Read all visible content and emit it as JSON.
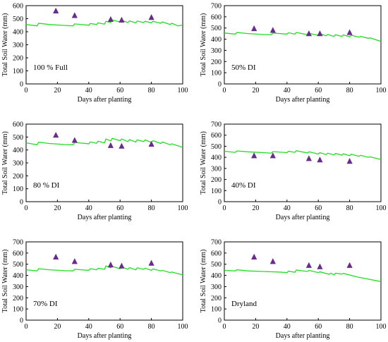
{
  "chart_data": [
    {
      "type": "scatter",
      "panel_label": "100 % Full",
      "xlabel": "Days after planting",
      "ylabel": "Total Soil Water (mm)",
      "xlim": [
        0,
        100
      ],
      "ylim": [
        0,
        600
      ],
      "xticks": [
        0,
        20,
        40,
        60,
        80,
        100
      ],
      "yticks": [
        0,
        100,
        200,
        300,
        400,
        500,
        600
      ],
      "series": [
        {
          "kind": "line",
          "color": "#22dd22",
          "x": [
            0,
            7,
            8,
            15,
            25,
            30,
            31,
            40,
            41,
            45,
            46,
            50,
            51,
            54,
            55,
            60,
            61,
            65,
            66,
            70,
            71,
            75,
            76,
            80,
            81,
            86,
            87,
            92,
            93,
            97,
            98,
            100
          ],
          "y": [
            455,
            445,
            465,
            455,
            448,
            445,
            460,
            450,
            463,
            455,
            468,
            458,
            480,
            470,
            490,
            475,
            488,
            470,
            483,
            468,
            482,
            470,
            480,
            468,
            480,
            465,
            475,
            455,
            465,
            445,
            448,
            450
          ]
        },
        {
          "kind": "points",
          "color": "#6a2c8c",
          "marker": "triangle",
          "x": [
            19,
            31,
            54,
            61,
            80
          ],
          "y": [
            560,
            525,
            495,
            490,
            510
          ]
        }
      ]
    },
    {
      "type": "scatter",
      "panel_label": "50% DI",
      "xlabel": "Days after planting",
      "ylabel": "Total Soil Water (mm)",
      "xlim": [
        0,
        100
      ],
      "ylim": [
        0,
        700
      ],
      "xticks": [
        0,
        20,
        40,
        60,
        80,
        100
      ],
      "yticks": [
        0,
        100,
        200,
        300,
        400,
        500,
        600,
        700
      ],
      "series": [
        {
          "kind": "line",
          "color": "#22dd22",
          "x": [
            0,
            7,
            8,
            15,
            25,
            30,
            31,
            40,
            41,
            45,
            46,
            53,
            54,
            60,
            61,
            65,
            66,
            70,
            71,
            75,
            76,
            80,
            81,
            86,
            87,
            92,
            93,
            100
          ],
          "y": [
            455,
            445,
            460,
            450,
            442,
            440,
            455,
            445,
            458,
            445,
            460,
            440,
            452,
            435,
            450,
            430,
            442,
            425,
            440,
            425,
            438,
            422,
            435,
            418,
            425,
            408,
            412,
            380
          ]
        },
        {
          "kind": "points",
          "color": "#6a2c8c",
          "marker": "triangle",
          "x": [
            19,
            31,
            54,
            61,
            80
          ],
          "y": [
            495,
            480,
            450,
            450,
            460
          ]
        }
      ]
    },
    {
      "type": "scatter",
      "panel_label": "80 % DI",
      "xlabel": "Days after planting",
      "ylabel": "Total Soil Water (mm)",
      "xlim": [
        0,
        100
      ],
      "ylim": [
        0,
        600
      ],
      "xticks": [
        0,
        20,
        40,
        60,
        80,
        100
      ],
      "yticks": [
        0,
        100,
        200,
        300,
        400,
        500,
        600
      ],
      "series": [
        {
          "kind": "line",
          "color": "#22dd22",
          "x": [
            0,
            7,
            8,
            15,
            25,
            30,
            31,
            40,
            41,
            45,
            46,
            50,
            51,
            54,
            55,
            60,
            61,
            65,
            66,
            70,
            71,
            75,
            76,
            80,
            81,
            86,
            87,
            92,
            93,
            100
          ],
          "y": [
            455,
            440,
            460,
            450,
            442,
            440,
            458,
            448,
            462,
            452,
            468,
            455,
            485,
            470,
            490,
            472,
            485,
            465,
            480,
            462,
            478,
            465,
            478,
            458,
            472,
            450,
            462,
            440,
            448,
            420
          ]
        },
        {
          "kind": "points",
          "color": "#6a2c8c",
          "marker": "triangle",
          "x": [
            19,
            31,
            54,
            61,
            80
          ],
          "y": [
            515,
            475,
            435,
            430,
            445
          ]
        }
      ]
    },
    {
      "type": "scatter",
      "panel_label": "40% DI",
      "xlabel": "Days after planting",
      "ylabel": "Total Soil Water (mm)",
      "xlim": [
        0,
        100
      ],
      "ylim": [
        0,
        700
      ],
      "xticks": [
        0,
        20,
        40,
        60,
        80,
        100
      ],
      "yticks": [
        0,
        100,
        200,
        300,
        400,
        500,
        600,
        700
      ],
      "series": [
        {
          "kind": "line",
          "color": "#22dd22",
          "x": [
            0,
            7,
            8,
            15,
            25,
            30,
            31,
            40,
            41,
            45,
            46,
            53,
            54,
            60,
            61,
            65,
            66,
            70,
            71,
            75,
            76,
            80,
            81,
            86,
            87,
            92,
            93,
            100
          ],
          "y": [
            455,
            445,
            458,
            450,
            442,
            438,
            452,
            442,
            455,
            445,
            460,
            440,
            450,
            430,
            442,
            425,
            438,
            422,
            435,
            420,
            432,
            415,
            428,
            410,
            418,
            400,
            405,
            380
          ]
        },
        {
          "kind": "points",
          "color": "#6a2c8c",
          "marker": "triangle",
          "x": [
            19,
            31,
            54,
            61,
            80
          ],
          "y": [
            415,
            415,
            390,
            378,
            365
          ]
        }
      ]
    },
    {
      "type": "scatter",
      "panel_label": "70% DI",
      "xlabel": "Days after planting",
      "ylabel": "Total Soil Water (mm)",
      "xlim": [
        0,
        100
      ],
      "ylim": [
        0,
        700
      ],
      "xticks": [
        0,
        20,
        40,
        60,
        80,
        100
      ],
      "yticks": [
        0,
        100,
        200,
        300,
        400,
        500,
        600,
        700
      ],
      "series": [
        {
          "kind": "line",
          "color": "#22dd22",
          "x": [
            0,
            7,
            8,
            15,
            25,
            30,
            31,
            40,
            41,
            45,
            46,
            50,
            51,
            54,
            55,
            60,
            61,
            65,
            66,
            70,
            71,
            75,
            76,
            80,
            81,
            86,
            87,
            92,
            93,
            100
          ],
          "y": [
            450,
            440,
            460,
            450,
            442,
            440,
            455,
            445,
            460,
            450,
            465,
            455,
            485,
            468,
            480,
            460,
            475,
            455,
            470,
            450,
            468,
            455,
            465,
            445,
            458,
            440,
            445,
            425,
            430,
            405
          ]
        },
        {
          "kind": "points",
          "color": "#6a2c8c",
          "marker": "triangle",
          "x": [
            19,
            31,
            54,
            61,
            80
          ],
          "y": [
            565,
            525,
            495,
            485,
            510
          ]
        }
      ]
    },
    {
      "type": "scatter",
      "panel_label": "Dryland",
      "xlabel": "Days after planting",
      "ylabel": "Total Soil Water (mm)",
      "xlim": [
        0,
        100
      ],
      "ylim": [
        0,
        700
      ],
      "xticks": [
        0,
        20,
        40,
        60,
        80,
        100
      ],
      "yticks": [
        0,
        100,
        200,
        300,
        400,
        500,
        600,
        700
      ],
      "series": [
        {
          "kind": "line",
          "color": "#22dd22",
          "x": [
            0,
            7,
            8,
            15,
            25,
            35,
            40,
            41,
            45,
            46,
            53,
            54,
            60,
            61,
            67,
            68,
            70,
            71,
            75,
            76,
            85,
            100
          ],
          "y": [
            445,
            440,
            450,
            440,
            435,
            430,
            425,
            438,
            428,
            448,
            435,
            445,
            425,
            432,
            410,
            420,
            405,
            420,
            412,
            418,
            385,
            345
          ]
        },
        {
          "kind": "points",
          "color": "#6a2c8c",
          "marker": "triangle",
          "x": [
            19,
            31,
            54,
            61,
            80
          ],
          "y": [
            565,
            525,
            490,
            478,
            490
          ]
        }
      ]
    }
  ]
}
